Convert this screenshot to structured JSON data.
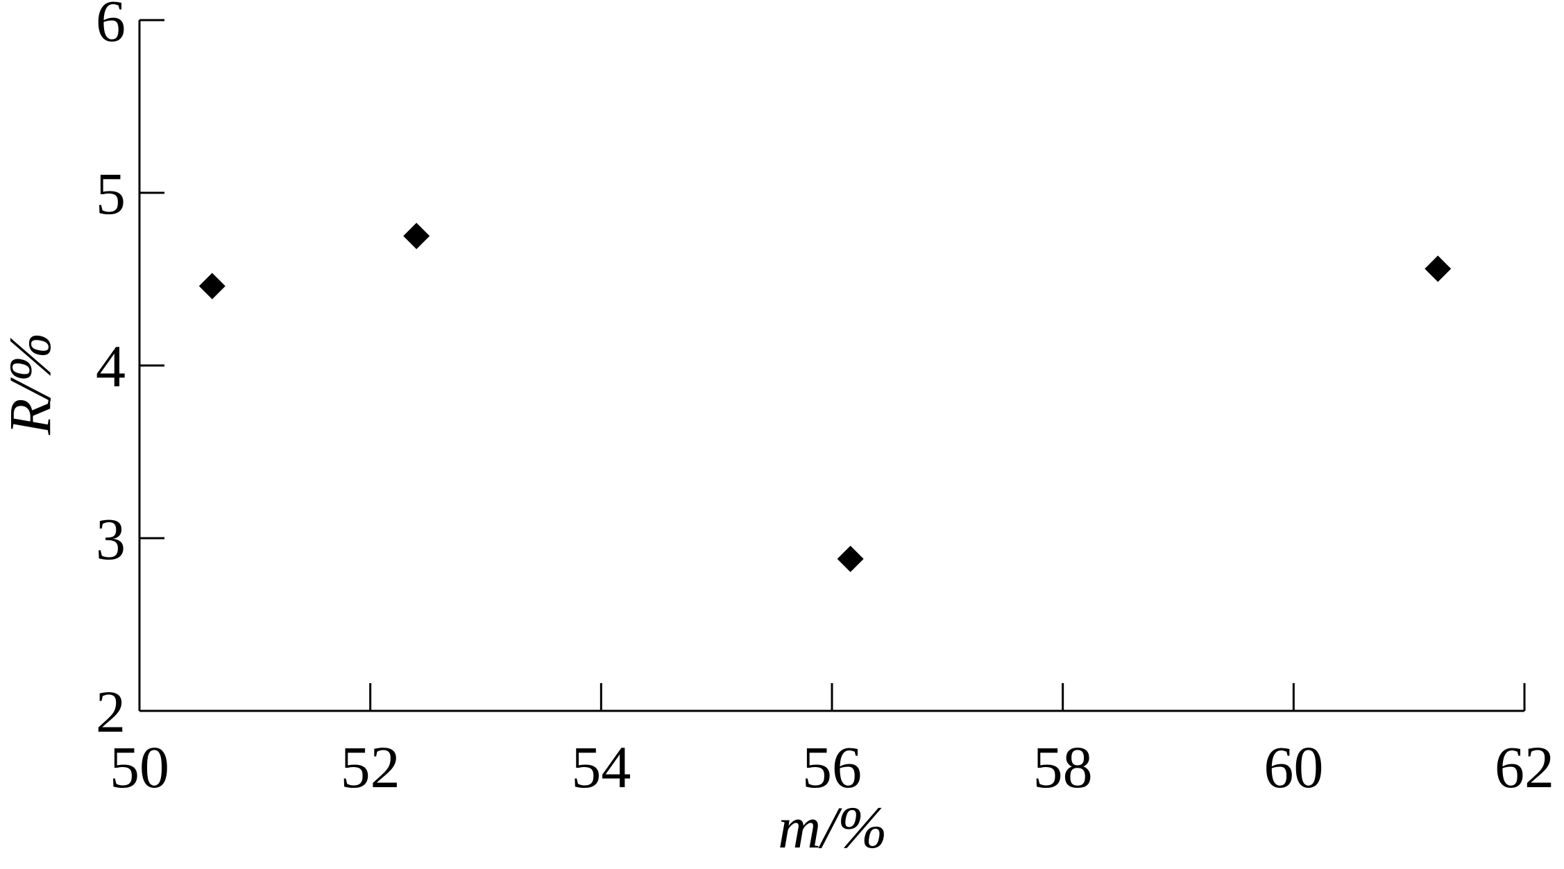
{
  "chart_data": {
    "type": "scatter",
    "x_label": "m/%",
    "y_label": "R/%",
    "x": [
      50.63,
      52.4,
      56.16,
      61.25
    ],
    "values": [
      4.46,
      4.75,
      2.88,
      4.56
    ],
    "color": "#000000",
    "xlim": [
      50,
      62
    ],
    "xticks": [
      50,
      52,
      54,
      56,
      58,
      60,
      62
    ],
    "ylim": [
      2,
      6
    ],
    "yticks": [
      2,
      3,
      4,
      5,
      6
    ]
  }
}
